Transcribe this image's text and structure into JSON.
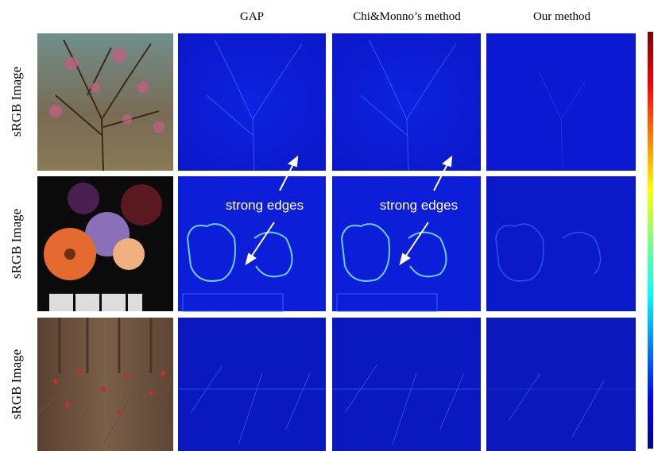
{
  "columns": [
    "GAP",
    "Chi&Monno’s method",
    "Our method"
  ],
  "rows": [
    "sRGB Image",
    "sRGB Image",
    "sRGB Image"
  ],
  "annotations": [
    "strong edges",
    "strong edges"
  ]
}
